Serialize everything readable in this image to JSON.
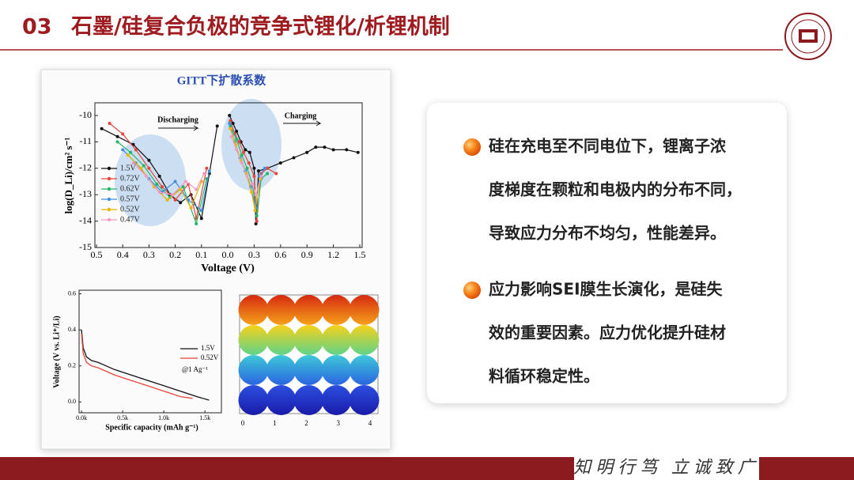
{
  "header": {
    "number": "03",
    "title": "石墨/硅复合负极的竞争式锂化/析锂机制"
  },
  "gitt": {
    "type": "line",
    "title": "GITT下扩散系数",
    "x_label": "Voltage (V)",
    "y_label": "log(D_Li)/cm² s⁻¹",
    "annotations": [
      "Discharging",
      "Charging"
    ],
    "discharge_xlim": [
      0.5,
      0
    ],
    "charge_xlim": [
      0,
      1.5
    ],
    "discharge_xticks": [
      0.5,
      0.4,
      0.3,
      0.2,
      0.1
    ],
    "charge_xticks": [
      {
        "value": 0,
        "label": "0.0"
      },
      0.3,
      0.6,
      0.9,
      1.2,
      1.5
    ],
    "ylim": [
      -15,
      -9.5
    ],
    "yticks": [
      -10,
      -11,
      -12,
      -13,
      -14,
      -15
    ],
    "series": [
      {
        "name": "1.5V",
        "color": "#111111",
        "discharge": {
          "x": [
            0.48,
            0.42,
            0.36,
            0.3,
            0.26,
            0.22,
            0.18,
            0.14,
            0.1,
            0.07,
            0.04
          ],
          "y": [
            -10.5,
            -10.8,
            -11.1,
            -11.7,
            -12.3,
            -13.0,
            -13.3,
            -13.0,
            -13.9,
            -12.2,
            -10.4
          ]
        },
        "charge": {
          "x": [
            0.02,
            0.06,
            0.1,
            0.15,
            0.2,
            0.25,
            0.3,
            0.32,
            0.35,
            0.45,
            0.6,
            0.75,
            0.9,
            1.0,
            1.1,
            1.2,
            1.35,
            1.48
          ],
          "y": [
            -10.0,
            -10.3,
            -10.6,
            -11.0,
            -11.3,
            -11.4,
            -12.0,
            -14.1,
            -12.1,
            -12.0,
            -11.8,
            -11.6,
            -11.4,
            -11.2,
            -11.2,
            -11.3,
            -11.3,
            -11.4
          ]
        }
      },
      {
        "name": "0.72V",
        "color": "#e8443a",
        "discharge": {
          "x": [
            0.45,
            0.4,
            0.35,
            0.3,
            0.25,
            0.2,
            0.15,
            0.12,
            0.08
          ],
          "y": [
            -10.3,
            -10.7,
            -11.3,
            -12.0,
            -12.7,
            -13.2,
            -12.6,
            -13.9,
            -12.0
          ]
        },
        "charge": {
          "x": [
            0.03,
            0.08,
            0.13,
            0.18,
            0.24,
            0.3,
            0.33,
            0.38,
            0.45,
            0.55
          ],
          "y": [
            -10.2,
            -10.7,
            -11.0,
            -11.4,
            -11.8,
            -12.3,
            -14.0,
            -12.2,
            -12.0,
            -12.2
          ]
        }
      },
      {
        "name": "0.62V",
        "color": "#1fb86a",
        "discharge": {
          "x": [
            0.42,
            0.37,
            0.32,
            0.27,
            0.22,
            0.17,
            0.12,
            0.08
          ],
          "y": [
            -11.0,
            -11.4,
            -11.9,
            -12.6,
            -13.1,
            -12.7,
            -14.1,
            -12.4
          ]
        },
        "charge": {
          "x": [
            0.03,
            0.1,
            0.16,
            0.22,
            0.28,
            0.33,
            0.38,
            0.45
          ],
          "y": [
            -10.4,
            -10.9,
            -11.5,
            -12.0,
            -12.6,
            -13.8,
            -12.4,
            -12.2
          ]
        }
      },
      {
        "name": "0.57V",
        "color": "#3d8fe0",
        "discharge": {
          "x": [
            0.4,
            0.35,
            0.3,
            0.25,
            0.2,
            0.15,
            0.1,
            0.07
          ],
          "y": [
            -11.3,
            -11.8,
            -12.4,
            -12.9,
            -12.5,
            -13.2,
            -13.6,
            -12.1
          ]
        },
        "charge": {
          "x": [
            0.02,
            0.08,
            0.14,
            0.2,
            0.26,
            0.32,
            0.36,
            0.42
          ],
          "y": [
            -10.3,
            -11.0,
            -11.6,
            -12.1,
            -12.7,
            -13.5,
            -12.3,
            -12.0
          ]
        }
      },
      {
        "name": "0.52V",
        "color": "#e8b400",
        "discharge": {
          "x": [
            0.38,
            0.33,
            0.28,
            0.23,
            0.18,
            0.14,
            0.1
          ],
          "y": [
            -11.5,
            -12.0,
            -12.7,
            -13.2,
            -12.8,
            -13.5,
            -12.5
          ]
        },
        "charge": {
          "x": [
            0.03,
            0.09,
            0.15,
            0.21,
            0.27,
            0.31,
            0.37
          ],
          "y": [
            -10.5,
            -11.1,
            -11.7,
            -12.2,
            -12.9,
            -13.6,
            -12.4
          ]
        }
      },
      {
        "name": "0.47V",
        "color": "#f49ac2",
        "discharge": {
          "x": [
            0.36,
            0.31,
            0.26,
            0.21,
            0.16,
            0.12,
            0.09
          ],
          "y": [
            -11.8,
            -12.3,
            -12.9,
            -13.0,
            -12.5,
            -12.8,
            -12.2
          ]
        },
        "charge": {
          "x": [
            0.04,
            0.1,
            0.16,
            0.22,
            0.28,
            0.32,
            0.38
          ],
          "y": [
            -10.8,
            -11.3,
            -11.8,
            -12.3,
            -12.6,
            -13.0,
            -12.3
          ]
        }
      }
    ]
  },
  "voltage": {
    "type": "line",
    "x_label": "Specific capacity (mAh g⁻¹)",
    "y_label": "Voltage (V vs. Li⁺/Li)",
    "annotation": "@1 Ag⁻¹",
    "xlim": [
      -30,
      1700
    ],
    "ylim": [
      -0.06,
      0.62
    ],
    "xticks": [
      {
        "value": 0,
        "label": "0.0k"
      },
      {
        "value": 500,
        "label": "0.5k"
      },
      {
        "value": 1000,
        "label": "1.0k"
      },
      {
        "value": 1500,
        "label": "1.5k"
      }
    ],
    "yticks": [
      {
        "value": 0,
        "label": "0.0"
      },
      0.2,
      0.4,
      0.6
    ],
    "series": [
      {
        "name": "1.5V",
        "color": "#111111",
        "x": [
          0,
          20,
          60,
          120,
          200,
          400,
          600,
          800,
          1000,
          1200,
          1400,
          1550
        ],
        "y": [
          0.4,
          0.3,
          0.25,
          0.23,
          0.22,
          0.18,
          0.15,
          0.12,
          0.09,
          0.06,
          0.03,
          0.01
        ]
      },
      {
        "name": "0.52V",
        "color": "#e8443a",
        "x": [
          0,
          20,
          60,
          120,
          200,
          400,
          600,
          800,
          1000,
          1200,
          1350
        ],
        "y": [
          0.38,
          0.27,
          0.22,
          0.2,
          0.19,
          0.15,
          0.12,
          0.09,
          0.06,
          0.03,
          0.02
        ]
      }
    ]
  },
  "simulation": {
    "xticks": [
      0,
      1,
      2,
      3,
      4
    ]
  },
  "bullets": [
    {
      "lines": [
        "硅在充电至不同电位下，锂离子浓",
        "度梯度在颗粒和电极内的分布不同，",
        "导致应力分布不均匀，性能差异。"
      ]
    },
    {
      "lines": [
        "应力影响SEI膜生长演化，是硅失",
        "效的重要因素。应力优化提升硅材",
        "料循环稳定性。"
      ]
    }
  ],
  "footer": {
    "motto": "知明行笃 立诚致广"
  }
}
